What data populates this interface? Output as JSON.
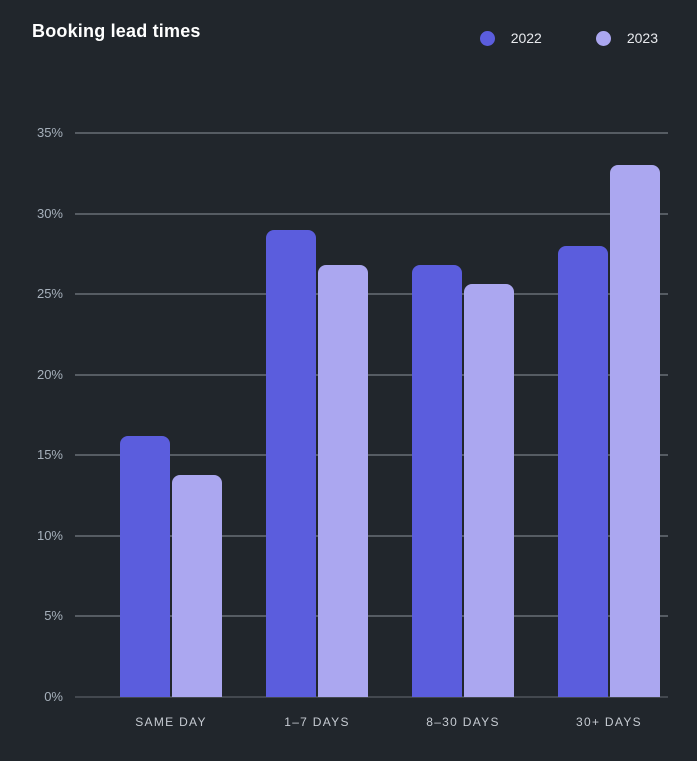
{
  "header": {
    "title": "Booking lead times"
  },
  "chart_data": {
    "type": "bar",
    "title": "Booking lead times",
    "categories": [
      "SAME DAY",
      "1–7 DAYS",
      "8–30 DAYS",
      "30+ DAYS"
    ],
    "series": [
      {
        "name": "2022",
        "color": "#5b5ddd",
        "values": [
          16.2,
          29.0,
          26.8,
          28.0
        ]
      },
      {
        "name": "2023",
        "color": "#aba7f0",
        "values": [
          13.8,
          26.8,
          25.6,
          33.0
        ]
      }
    ],
    "xlabel": "",
    "ylabel": "",
    "ylim": [
      0,
      35
    ],
    "ytick_step": 5,
    "yticks": [
      "0%",
      "5%",
      "10%",
      "15%",
      "20%",
      "25%",
      "30%",
      "35%"
    ],
    "grid": true,
    "legend_position": "top-right",
    "colors": {
      "background": "#21262c",
      "gridline": "#565c63",
      "baseline": "#43484f",
      "axis_label": "#a6b0bb",
      "category_label": "#c6cbd2",
      "legend_label": "#e8eaee",
      "title": "#ffffff"
    }
  }
}
